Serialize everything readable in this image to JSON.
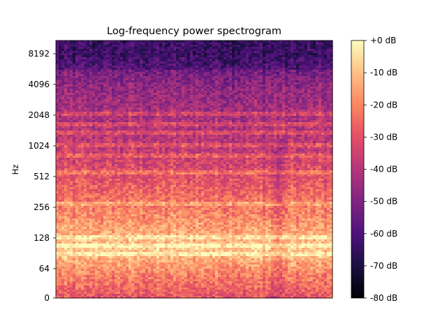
{
  "chart_data": {
    "type": "heatmap",
    "title": "Log-frequency power spectrogram",
    "xlabel": "",
    "ylabel": "Hz",
    "y_scale": "log2",
    "y_ticks": [
      "0",
      "64",
      "128",
      "256",
      "512",
      "1024",
      "2048",
      "4096",
      "8192"
    ],
    "colormap": "magma",
    "colorbar": {
      "range_db": [
        -80,
        0
      ],
      "ticks": [
        "+0 dB",
        "-10 dB",
        "-20 dB",
        "-30 dB",
        "-40 dB",
        "-50 dB",
        "-60 dB",
        "-70 dB",
        "-80 dB"
      ]
    },
    "approx_band_levels_db": [
      {
        "freq_hz": 32,
        "level_db": -30
      },
      {
        "freq_hz": 64,
        "level_db": -18
      },
      {
        "freq_hz": 100,
        "level_db": -8
      },
      {
        "freq_hz": 128,
        "level_db": -12
      },
      {
        "freq_hz": 256,
        "level_db": -22
      },
      {
        "freq_hz": 512,
        "level_db": -30
      },
      {
        "freq_hz": 1024,
        "level_db": -38
      },
      {
        "freq_hz": 2048,
        "level_db": -42
      },
      {
        "freq_hz": 4096,
        "level_db": -48
      },
      {
        "freq_hz": 8192,
        "level_db": -58
      }
    ],
    "grid": false
  }
}
